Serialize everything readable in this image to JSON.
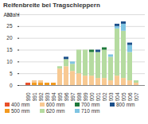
{
  "chart_data": {
    "type": "bar",
    "title": "Reifenbreite bei Tragschleppern",
    "y_label": "Anzahl",
    "categories": [
      "1990",
      "1991",
      "1992",
      "1993",
      "1994",
      "1995",
      "1996",
      "1997",
      "1998",
      "1999",
      "2000",
      "2001",
      "2002",
      "2003",
      "2004",
      "2005",
      "2006",
      "2007"
    ],
    "series": [
      {
        "name": "400 mm",
        "color": "#e8502a",
        "values": [
          1,
          0,
          0,
          0,
          0,
          0,
          0,
          0,
          0,
          0,
          0,
          0,
          0,
          0,
          0,
          0,
          0,
          0
        ]
      },
      {
        "name": "500 mm",
        "color": "#f39a1f",
        "values": [
          0,
          1,
          1,
          1,
          1,
          0,
          0,
          0,
          0,
          0,
          0,
          0,
          0,
          0,
          0,
          0,
          0,
          0
        ]
      },
      {
        "name": "600 mm",
        "color": "#f8c992",
        "values": [
          0,
          1,
          1,
          0,
          0,
          7,
          8,
          6,
          5,
          4,
          4,
          3,
          3,
          2,
          4,
          3,
          2,
          1
        ]
      },
      {
        "name": "620 mm",
        "color": "#b5dba0",
        "values": [
          0,
          0,
          0,
          0,
          0,
          1,
          3,
          3,
          10,
          11,
          10,
          11,
          12,
          10,
          20,
          20,
          12,
          1
        ]
      },
      {
        "name": "700 mm",
        "color": "#1f7a3c",
        "values": [
          0,
          0,
          0,
          0,
          0,
          0,
          0,
          0,
          0,
          0,
          1,
          0,
          1,
          0,
          0,
          0,
          0,
          0
        ]
      },
      {
        "name": "710 mm",
        "color": "#7fc4e2",
        "values": [
          0,
          0,
          0,
          0,
          0,
          0,
          0,
          1,
          0,
          0,
          0,
          0,
          0,
          1,
          1,
          3,
          3,
          0
        ]
      },
      {
        "name": "800 mm",
        "color": "#1b4f8a",
        "values": [
          0,
          0,
          0,
          0,
          0,
          0,
          1,
          0,
          0,
          0,
          0,
          1,
          0,
          0,
          1,
          1,
          1,
          0
        ]
      }
    ],
    "stacked": true,
    "ylim": [
      0,
      30
    ],
    "yticks": [
      0,
      5,
      10,
      15,
      20,
      25,
      30
    ],
    "grid": true,
    "legend": "bottom"
  }
}
